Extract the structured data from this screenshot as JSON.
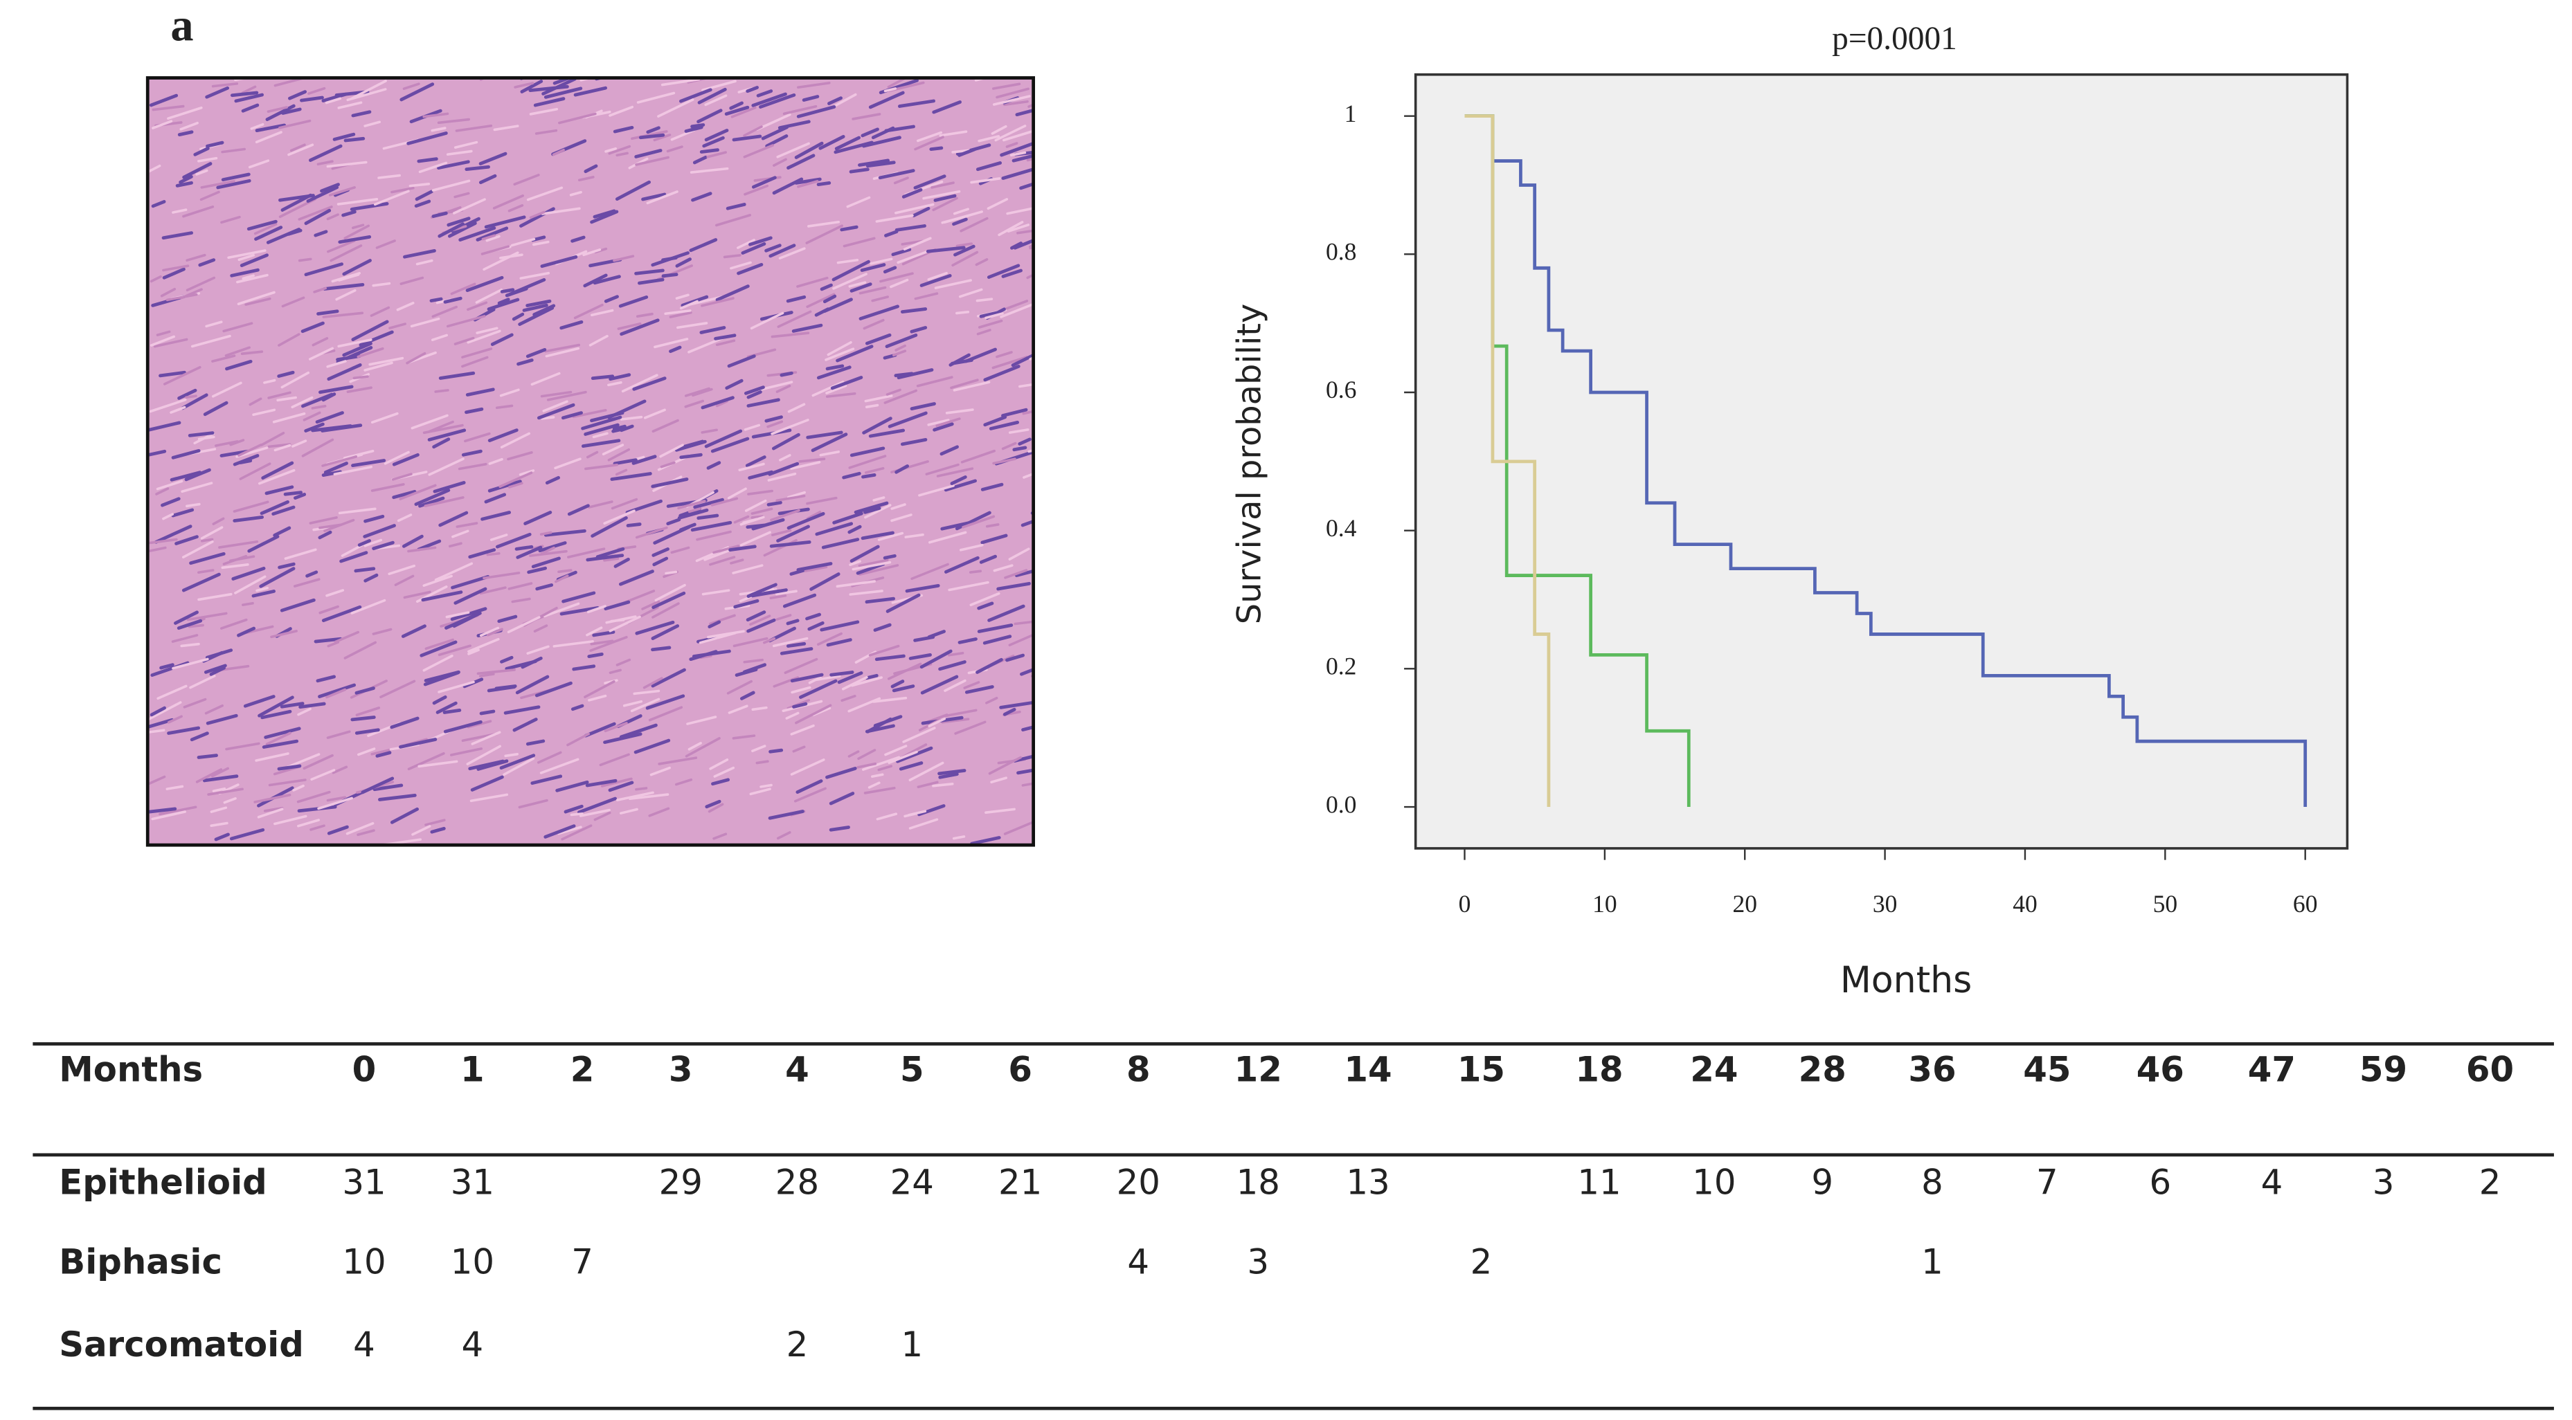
{
  "panel_label": "a",
  "chart_data": {
    "type": "step",
    "title": "p=0.0001",
    "x_label": "Months",
    "y_label": "Survival probability",
    "xlim": [
      -3.5,
      63
    ],
    "ylim": [
      -0.06,
      1.06
    ],
    "xticks": [
      0,
      10,
      20,
      30,
      40,
      50,
      60
    ],
    "yticks": [
      {
        "value": 0,
        "label": "0.0"
      },
      0.2,
      0.4,
      0.6,
      0.8,
      1
    ],
    "series": [
      {
        "color": "#5566b5",
        "x": [
          0,
          2,
          4,
          5,
          6,
          7,
          9,
          13,
          15,
          19,
          25,
          28,
          29,
          37,
          46,
          47,
          48,
          60
        ],
        "values": [
          1,
          0.935,
          0.9,
          0.78,
          0.69,
          0.66,
          0.6,
          0.44,
          0.38,
          0.345,
          0.31,
          0.28,
          0.25,
          0.19,
          0.16,
          0.13,
          0.095,
          0
        ]
      },
      {
        "color": "#5cba5c",
        "x": [
          0,
          2,
          3,
          9,
          13,
          16
        ],
        "values": [
          1,
          0.667,
          0.335,
          0.22,
          0.11,
          0
        ]
      },
      {
        "color": "#d9cc94",
        "x": [
          0,
          2,
          5,
          6
        ],
        "values": [
          1,
          0.5,
          0.25,
          0
        ]
      }
    ]
  },
  "table": {
    "header": {
      "label": "Months",
      "months": [
        0,
        1,
        2,
        3,
        4,
        5,
        6,
        8,
        12,
        14,
        15,
        18,
        24,
        28,
        36,
        45,
        46,
        47,
        59,
        60
      ]
    },
    "rows": [
      {
        "label": "Epithelioid",
        "values": [
          31,
          31,
          null,
          29,
          28,
          24,
          21,
          20,
          18,
          13,
          null,
          11,
          10,
          9,
          8,
          7,
          6,
          4,
          3,
          2
        ]
      },
      {
        "label": "Biphasic",
        "values": [
          10,
          10,
          7,
          null,
          null,
          null,
          null,
          4,
          3,
          null,
          2,
          null,
          null,
          null,
          1,
          null,
          null,
          null,
          null,
          null
        ]
      },
      {
        "label": "Sarcomatoid",
        "values": [
          4,
          4,
          null,
          null,
          2,
          1,
          null,
          null,
          null,
          null,
          null,
          null,
          null,
          null,
          null,
          null,
          null,
          null,
          null,
          null
        ]
      }
    ]
  }
}
